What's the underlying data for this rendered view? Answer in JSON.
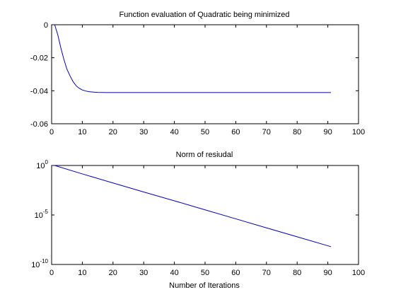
{
  "chart_data": [
    {
      "type": "line",
      "title": "Function evaluation of Quadratic being minimized",
      "xlabel": "",
      "ylabel": "",
      "xlim": [
        0,
        100
      ],
      "ylim": [
        -0.06,
        0
      ],
      "xscale": "linear",
      "yscale": "linear",
      "grid": false,
      "xticks": [
        0,
        10,
        20,
        30,
        40,
        50,
        60,
        70,
        80,
        90,
        100
      ],
      "xtick_labels": [
        "0",
        "10",
        "20",
        "30",
        "40",
        "50",
        "60",
        "70",
        "80",
        "90",
        "100"
      ],
      "yticks": [
        0,
        -0.02,
        -0.04,
        -0.06
      ],
      "ytick_labels": [
        "0",
        "-0.02",
        "-0.04",
        "-0.06"
      ],
      "series": [
        {
          "color": "#0000c8",
          "x": [
            1,
            2,
            3,
            4,
            5,
            6,
            7,
            8,
            9,
            10,
            11,
            12,
            13,
            14,
            15,
            18,
            20,
            30,
            40,
            50,
            60,
            70,
            80,
            91
          ],
          "y": [
            0,
            -0.006,
            -0.014,
            -0.021,
            -0.027,
            -0.031,
            -0.0345,
            -0.037,
            -0.0385,
            -0.0395,
            -0.0401,
            -0.0405,
            -0.0407,
            -0.0409,
            -0.041,
            -0.0411,
            -0.0411,
            -0.0411,
            -0.0411,
            -0.0411,
            -0.0411,
            -0.0411,
            -0.0411,
            -0.0411
          ]
        }
      ]
    },
    {
      "type": "line",
      "title": "Norm of resiudal",
      "xlabel": "Number of Iterations",
      "ylabel": "",
      "xlim": [
        0,
        100
      ],
      "ylim": [
        1e-10,
        1
      ],
      "xscale": "linear",
      "yscale": "log",
      "grid": false,
      "xticks": [
        0,
        10,
        20,
        30,
        40,
        50,
        60,
        70,
        80,
        90,
        100
      ],
      "xtick_labels": [
        "0",
        "10",
        "20",
        "30",
        "40",
        "50",
        "60",
        "70",
        "80",
        "90",
        "100"
      ],
      "yticks": [
        1,
        1e-05,
        1e-10
      ],
      "ytick_labels": [
        {
          "base": "10",
          "exp": "0"
        },
        {
          "base": "10",
          "exp": "-5"
        },
        {
          "base": "10",
          "exp": "-10"
        }
      ],
      "series": [
        {
          "color": "#0000c8",
          "x": [
            1,
            10,
            20,
            30,
            40,
            50,
            60,
            70,
            80,
            91
          ],
          "y": [
            1,
            0.14,
            0.017,
            0.0021,
            0.00027,
            3.3e-05,
            4.1e-06,
            5e-07,
            6.2e-08,
            6.3e-09
          ]
        }
      ]
    }
  ]
}
